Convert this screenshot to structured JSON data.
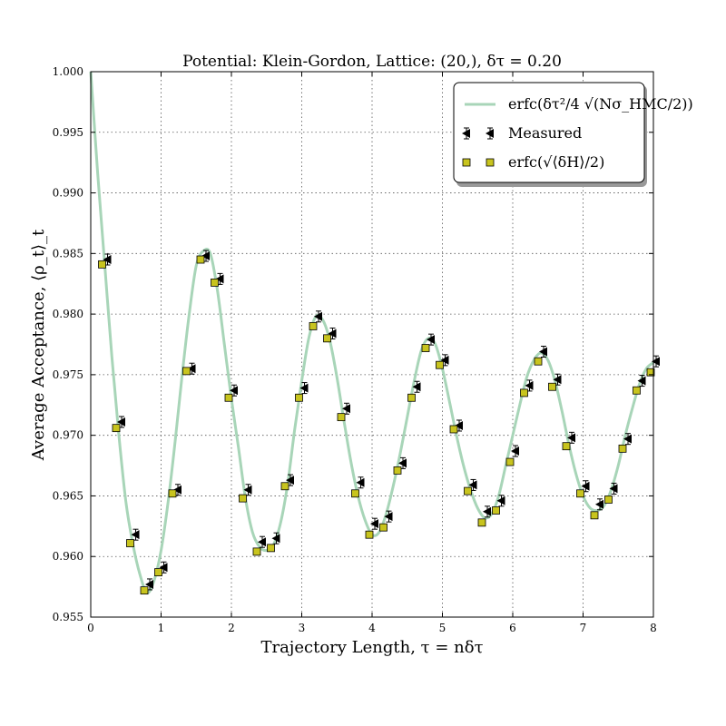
{
  "chart_data": {
    "type": "line",
    "title": "Potential: Klein-Gordon, Lattice: (20,), δτ = 0.20",
    "xlabel": "Trajectory Length, τ = nδτ",
    "ylabel": "Average Acceptance, ⟨ρ_t⟩_t",
    "xlim": [
      0,
      8
    ],
    "ylim": [
      0.955,
      1.0
    ],
    "x_ticks": [
      "0",
      "1",
      "2",
      "3",
      "4",
      "5",
      "6",
      "7",
      "8"
    ],
    "y_ticks": [
      "0.955",
      "0.960",
      "0.965",
      "0.970",
      "0.975",
      "0.980",
      "0.985",
      "0.990",
      "0.995",
      "1.000"
    ],
    "grid": true,
    "legend_position": "top-right",
    "series": [
      {
        "name": "erfc(δτ²/4 √(Nσ_HMC/2))",
        "kind": "line",
        "color": "#a8d5b8",
        "x": [
          0.0,
          0.1,
          0.2,
          0.3,
          0.4,
          0.5,
          0.6,
          0.7,
          0.8,
          0.9,
          1.0,
          1.1,
          1.2,
          1.3,
          1.4,
          1.5,
          1.6,
          1.7,
          1.8,
          1.9,
          2.0,
          2.1,
          2.2,
          2.3,
          2.4,
          2.5,
          2.6,
          2.7,
          2.8,
          2.9,
          3.0,
          3.1,
          3.2,
          3.3,
          3.4,
          3.5,
          3.6,
          3.7,
          3.8,
          3.9,
          4.0,
          4.1,
          4.2,
          4.3,
          4.4,
          4.5,
          4.6,
          4.7,
          4.8,
          4.9,
          5.0,
          5.1,
          5.2,
          5.3,
          5.4,
          5.5,
          5.6,
          5.7,
          5.8,
          5.9,
          6.0,
          6.1,
          6.2,
          6.3,
          6.4,
          6.5,
          6.6,
          6.7,
          6.8,
          6.9,
          7.0,
          7.1,
          7.2,
          7.3,
          7.4,
          7.5,
          7.6,
          7.7,
          7.8,
          7.9,
          8.0
        ],
        "y": [
          1.0,
          0.9915,
          0.984,
          0.9765,
          0.97,
          0.9645,
          0.961,
          0.9585,
          0.957,
          0.958,
          0.9605,
          0.9645,
          0.9695,
          0.975,
          0.98,
          0.984,
          0.9852,
          0.985,
          0.982,
          0.9775,
          0.973,
          0.969,
          0.9648,
          0.962,
          0.9608,
          0.9605,
          0.961,
          0.9628,
          0.966,
          0.9705,
          0.9745,
          0.978,
          0.9798,
          0.9795,
          0.9778,
          0.9748,
          0.9712,
          0.9678,
          0.965,
          0.963,
          0.9618,
          0.962,
          0.9635,
          0.9658,
          0.9685,
          0.9715,
          0.9745,
          0.977,
          0.978,
          0.9775,
          0.9755,
          0.9728,
          0.97,
          0.9675,
          0.9655,
          0.964,
          0.9632,
          0.9635,
          0.965,
          0.9675,
          0.97,
          0.9725,
          0.9748,
          0.9762,
          0.9768,
          0.9762,
          0.9745,
          0.972,
          0.9692,
          0.9668,
          0.965,
          0.964,
          0.9638,
          0.9642,
          0.9655,
          0.9675,
          0.97,
          0.9722,
          0.9742,
          0.9755,
          0.976
        ]
      },
      {
        "name": "Measured",
        "kind": "triangle-left",
        "color": "#000000",
        "x": [
          0.2,
          0.4,
          0.6,
          0.8,
          1.0,
          1.2,
          1.4,
          1.6,
          1.8,
          2.0,
          2.2,
          2.4,
          2.6,
          2.8,
          3.0,
          3.2,
          3.4,
          3.6,
          3.8,
          4.0,
          4.2,
          4.4,
          4.6,
          4.8,
          5.0,
          5.2,
          5.4,
          5.6,
          5.8,
          6.0,
          6.2,
          6.4,
          6.6,
          6.8,
          7.0,
          7.2,
          7.4,
          7.6,
          7.8,
          8.0
        ],
        "y": [
          0.9845,
          0.9711,
          0.9618,
          0.9577,
          0.9591,
          0.9655,
          0.9755,
          0.9848,
          0.9829,
          0.9737,
          0.9655,
          0.9612,
          0.9615,
          0.9663,
          0.9739,
          0.9798,
          0.9784,
          0.9722,
          0.9661,
          0.9627,
          0.9633,
          0.9677,
          0.974,
          0.9779,
          0.9762,
          0.9708,
          0.9659,
          0.9637,
          0.9646,
          0.9687,
          0.9741,
          0.9769,
          0.9746,
          0.9698,
          0.9658,
          0.9643,
          0.9656,
          0.9697,
          0.9745,
          0.9761
        ]
      },
      {
        "name": "erfc(√⟨δH⟩/2)",
        "kind": "square",
        "color": "#c8c41e",
        "x": [
          0.2,
          0.4,
          0.6,
          0.8,
          1.0,
          1.2,
          1.4,
          1.6,
          1.8,
          2.0,
          2.2,
          2.4,
          2.6,
          2.8,
          3.0,
          3.2,
          3.4,
          3.6,
          3.8,
          4.0,
          4.2,
          4.4,
          4.6,
          4.8,
          5.0,
          5.2,
          5.4,
          5.6,
          5.8,
          6.0,
          6.2,
          6.4,
          6.6,
          6.8,
          7.0,
          7.2,
          7.4,
          7.6,
          7.8,
          8.0
        ],
        "y": [
          0.9841,
          0.9706,
          0.9611,
          0.9572,
          0.9587,
          0.9652,
          0.9753,
          0.9845,
          0.9826,
          0.9731,
          0.9648,
          0.9604,
          0.9607,
          0.9658,
          0.9731,
          0.979,
          0.978,
          0.9715,
          0.9652,
          0.9618,
          0.9624,
          0.9671,
          0.9731,
          0.9772,
          0.9758,
          0.9705,
          0.9654,
          0.9628,
          0.9638,
          0.9678,
          0.9735,
          0.9761,
          0.974,
          0.9691,
          0.9652,
          0.9634,
          0.9647,
          0.9689,
          0.9737,
          0.9752
        ]
      }
    ]
  }
}
